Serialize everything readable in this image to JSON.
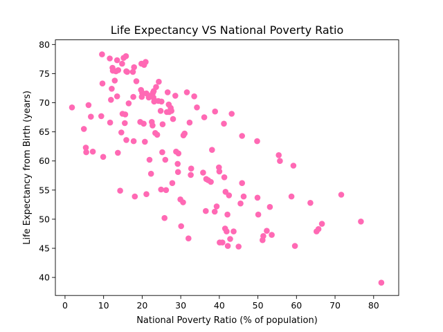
{
  "chart_data": {
    "type": "scatter",
    "title": "Life Expectancy VS National Poverty Ratio",
    "xlabel": "National Poverty Ratio (% of population)",
    "ylabel": "Life Expectancy from Birth (years)",
    "xlim": [
      -2.5,
      86.5
    ],
    "ylim": [
      36.9,
      80.8
    ],
    "xticks": [
      0,
      10,
      20,
      30,
      40,
      50,
      60,
      70,
      80
    ],
    "yticks": [
      40,
      45,
      50,
      55,
      60,
      65,
      70,
      75,
      80
    ],
    "grid": false,
    "point_color": "#ff69b4",
    "points": [
      [
        1.8,
        69.2
      ],
      [
        4.9,
        65.5
      ],
      [
        5.4,
        62.3
      ],
      [
        5.5,
        61.5
      ],
      [
        6.1,
        69.6
      ],
      [
        6.7,
        67.6
      ],
      [
        7.2,
        61.6
      ],
      [
        9.4,
        67.7
      ],
      [
        9.6,
        78.3
      ],
      [
        9.7,
        73.3
      ],
      [
        9.9,
        60.7
      ],
      [
        11.6,
        77.6
      ],
      [
        11.7,
        66.6
      ],
      [
        11.9,
        70.5
      ],
      [
        12.1,
        72.4
      ],
      [
        12.3,
        76.0
      ],
      [
        12.4,
        75.5
      ],
      [
        12.9,
        73.8
      ],
      [
        13.2,
        75.4
      ],
      [
        13.5,
        71.1
      ],
      [
        13.5,
        77.3
      ],
      [
        13.7,
        61.4
      ],
      [
        13.8,
        75.6
      ],
      [
        14.3,
        54.9
      ],
      [
        14.6,
        64.9
      ],
      [
        14.8,
        76.7
      ],
      [
        14.9,
        68.1
      ],
      [
        15.2,
        77.7
      ],
      [
        15.5,
        66.5
      ],
      [
        15.6,
        68.0
      ],
      [
        15.8,
        78.0
      ],
      [
        15.9,
        75.4
      ],
      [
        15.9,
        63.6
      ],
      [
        16.1,
        75.3
      ],
      [
        16.5,
        69.9
      ],
      [
        17.6,
        75.3
      ],
      [
        17.7,
        71.0
      ],
      [
        17.8,
        63.4
      ],
      [
        17.9,
        76.1
      ],
      [
        18.1,
        53.9
      ],
      [
        18.5,
        73.7
      ],
      [
        19.5,
        66.7
      ],
      [
        19.7,
        72.2
      ],
      [
        19.8,
        76.7
      ],
      [
        19.9,
        71.0
      ],
      [
        20.0,
        71.7
      ],
      [
        20.4,
        66.4
      ],
      [
        20.5,
        76.5
      ],
      [
        20.7,
        63.3
      ],
      [
        20.9,
        77.0
      ],
      [
        21.1,
        71.6
      ],
      [
        21.1,
        54.3
      ],
      [
        21.7,
        70.9
      ],
      [
        21.9,
        60.2
      ],
      [
        22.1,
        71.2
      ],
      [
        22.3,
        57.8
      ],
      [
        22.5,
        66.7
      ],
      [
        22.7,
        66.1
      ],
      [
        22.8,
        71.7
      ],
      [
        22.9,
        70.9
      ],
      [
        23.0,
        72.0
      ],
      [
        23.1,
        70.2
      ],
      [
        23.2,
        70.4
      ],
      [
        23.4,
        64.8
      ],
      [
        23.6,
        72.7
      ],
      [
        23.9,
        64.5
      ],
      [
        24.2,
        70.3
      ],
      [
        24.3,
        73.6
      ],
      [
        24.8,
        68.6
      ],
      [
        24.9,
        55.1
      ],
      [
        25.0,
        70.2
      ],
      [
        25.2,
        61.5
      ],
      [
        25.3,
        66.3
      ],
      [
        25.8,
        50.2
      ],
      [
        26.0,
        60.2
      ],
      [
        26.2,
        55.0
      ],
      [
        26.4,
        68.4
      ],
      [
        26.6,
        71.8
      ],
      [
        26.9,
        69.7
      ],
      [
        27.0,
        68.4
      ],
      [
        27.4,
        69.1
      ],
      [
        27.6,
        68.6
      ],
      [
        27.8,
        56.2
      ],
      [
        28.0,
        67.2
      ],
      [
        28.6,
        71.2
      ],
      [
        28.8,
        61.6
      ],
      [
        29.2,
        59.5
      ],
      [
        29.3,
        58.1
      ],
      [
        29.4,
        61.3
      ],
      [
        29.9,
        53.4
      ],
      [
        30.1,
        48.8
      ],
      [
        30.6,
        52.9
      ],
      [
        30.7,
        64.4
      ],
      [
        31.0,
        64.7
      ],
      [
        31.6,
        71.8
      ],
      [
        32.0,
        46.7
      ],
      [
        32.3,
        66.6
      ],
      [
        32.6,
        57.6
      ],
      [
        32.7,
        58.7
      ],
      [
        33.5,
        71.1
      ],
      [
        34.2,
        69.2
      ],
      [
        35.8,
        58.0
      ],
      [
        36.1,
        67.5
      ],
      [
        36.5,
        51.4
      ],
      [
        36.6,
        56.9
      ],
      [
        37.1,
        56.7
      ],
      [
        37.8,
        56.4
      ],
      [
        38.1,
        61.9
      ],
      [
        38.8,
        51.3
      ],
      [
        38.9,
        68.5
      ],
      [
        39.3,
        52.2
      ],
      [
        39.9,
        58.9
      ],
      [
        40.0,
        58.2
      ],
      [
        40.1,
        46.0
      ],
      [
        40.8,
        46.0
      ],
      [
        41.2,
        66.4
      ],
      [
        41.3,
        57.2
      ],
      [
        41.5,
        48.4
      ],
      [
        41.6,
        54.7
      ],
      [
        41.9,
        47.9
      ],
      [
        42.1,
        50.8
      ],
      [
        42.2,
        45.4
      ],
      [
        42.5,
        54.1
      ],
      [
        42.8,
        46.6
      ],
      [
        43.2,
        68.1
      ],
      [
        43.7,
        47.9
      ],
      [
        45.0,
        45.3
      ],
      [
        45.5,
        52.7
      ],
      [
        45.9,
        64.3
      ],
      [
        45.9,
        56.2
      ],
      [
        46.3,
        53.9
      ],
      [
        49.8,
        63.4
      ],
      [
        49.9,
        53.7
      ],
      [
        50.1,
        50.8
      ],
      [
        51.2,
        46.4
      ],
      [
        51.4,
        47.1
      ],
      [
        52.3,
        48.0
      ],
      [
        53.1,
        52.1
      ],
      [
        53.6,
        47.3
      ],
      [
        55.4,
        61.0
      ],
      [
        55.7,
        60.0
      ],
      [
        58.7,
        53.9
      ],
      [
        59.2,
        59.2
      ],
      [
        59.6,
        45.4
      ],
      [
        63.6,
        52.8
      ],
      [
        65.2,
        47.9
      ],
      [
        65.7,
        48.3
      ],
      [
        66.6,
        49.2
      ],
      [
        71.6,
        54.2
      ],
      [
        76.7,
        49.6
      ],
      [
        82.0,
        39.1
      ]
    ]
  }
}
